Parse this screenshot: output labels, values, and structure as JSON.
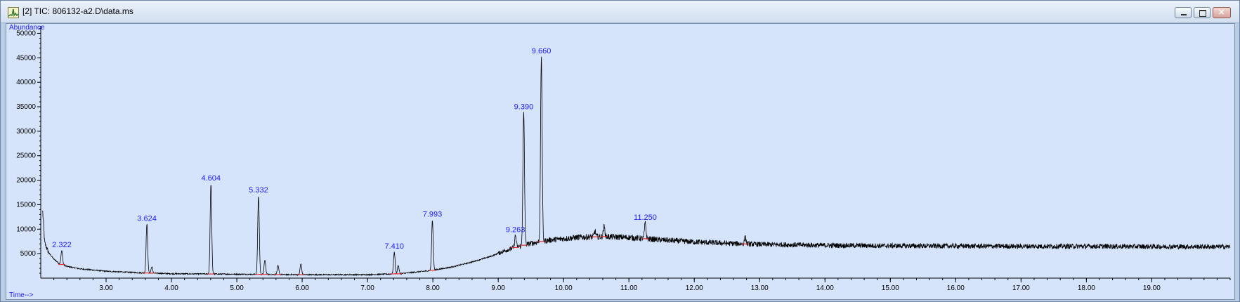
{
  "window": {
    "title": "[2] TIC: 806132-a2.D\\data.ms",
    "controls": [
      "minimize",
      "maximize",
      "close"
    ],
    "icon": "chromatogram-icon"
  },
  "chart_data": {
    "type": "line",
    "ylabel": "Abundance",
    "xlabel": "Time-->",
    "xlim": [
      2.0,
      20.2
    ],
    "ylim": [
      0,
      51500
    ],
    "yticks": [
      5000,
      10000,
      15000,
      20000,
      25000,
      30000,
      35000,
      40000,
      45000,
      50000
    ],
    "xticks": [
      3.0,
      4.0,
      5.0,
      6.0,
      7.0,
      8.0,
      9.0,
      10.0,
      11.0,
      12.0,
      13.0,
      14.0,
      15.0,
      16.0,
      17.0,
      18.0,
      19.0
    ],
    "ytick_labels": [
      "5000",
      "10000",
      "15000",
      "20000",
      "25000",
      "30000",
      "35000",
      "40000",
      "45000",
      "50000"
    ],
    "xtick_labels": [
      "3.00",
      "4.00",
      "5.00",
      "6.00",
      "7.00",
      "8.00",
      "9.00",
      "10.00",
      "11.00",
      "12.00",
      "13.00",
      "14.00",
      "15.00",
      "16.00",
      "17.00",
      "18.00",
      "19.00"
    ],
    "baseline": [
      {
        "x": 2.03,
        "y": 13500
      },
      {
        "x": 2.06,
        "y": 7200
      },
      {
        "x": 2.12,
        "y": 5200
      },
      {
        "x": 2.2,
        "y": 3900
      },
      {
        "x": 2.28,
        "y": 3000
      },
      {
        "x": 2.4,
        "y": 2400
      },
      {
        "x": 2.6,
        "y": 1900
      },
      {
        "x": 3.0,
        "y": 1400
      },
      {
        "x": 3.5,
        "y": 1100
      },
      {
        "x": 4.0,
        "y": 900
      },
      {
        "x": 5.0,
        "y": 800
      },
      {
        "x": 6.0,
        "y": 700
      },
      {
        "x": 7.0,
        "y": 700
      },
      {
        "x": 7.5,
        "y": 900
      },
      {
        "x": 8.0,
        "y": 1600
      },
      {
        "x": 8.3,
        "y": 2300
      },
      {
        "x": 8.6,
        "y": 3300
      },
      {
        "x": 8.9,
        "y": 4500
      },
      {
        "x": 9.1,
        "y": 5600
      },
      {
        "x": 9.3,
        "y": 6400
      },
      {
        "x": 9.5,
        "y": 7100
      },
      {
        "x": 9.8,
        "y": 7800
      },
      {
        "x": 10.2,
        "y": 8300
      },
      {
        "x": 10.6,
        "y": 8500
      },
      {
        "x": 11.0,
        "y": 8300
      },
      {
        "x": 11.5,
        "y": 7800
      },
      {
        "x": 12.0,
        "y": 7400
      },
      {
        "x": 12.5,
        "y": 7100
      },
      {
        "x": 13.0,
        "y": 6900
      },
      {
        "x": 14.0,
        "y": 6700
      },
      {
        "x": 15.0,
        "y": 6600
      },
      {
        "x": 16.0,
        "y": 6550
      },
      {
        "x": 17.0,
        "y": 6500
      },
      {
        "x": 18.0,
        "y": 6500
      },
      {
        "x": 19.0,
        "y": 6450
      },
      {
        "x": 20.2,
        "y": 6400
      }
    ],
    "peaks": [
      {
        "x": 2.322,
        "y": 5600,
        "label": "2.322"
      },
      {
        "x": 3.624,
        "y": 11000,
        "label": "3.624"
      },
      {
        "x": 3.7,
        "y": 2300
      },
      {
        "x": 4.604,
        "y": 19200,
        "label": "4.604"
      },
      {
        "x": 5.332,
        "y": 16800,
        "label": "5.332"
      },
      {
        "x": 5.43,
        "y": 3700
      },
      {
        "x": 5.63,
        "y": 2500
      },
      {
        "x": 5.98,
        "y": 2900
      },
      {
        "x": 7.41,
        "y": 5300,
        "label": "7.410"
      },
      {
        "x": 7.47,
        "y": 2600
      },
      {
        "x": 7.993,
        "y": 11800,
        "label": "7.993"
      },
      {
        "x": 9.263,
        "y": 8700,
        "label": "9.263"
      },
      {
        "x": 9.39,
        "y": 33800,
        "label": "9.390"
      },
      {
        "x": 9.66,
        "y": 45200,
        "label": "9.660"
      },
      {
        "x": 10.48,
        "y": 9600
      },
      {
        "x": 10.62,
        "y": 10500
      },
      {
        "x": 11.25,
        "y": 11200,
        "label": "11.250"
      },
      {
        "x": 12.78,
        "y": 8300
      }
    ]
  }
}
